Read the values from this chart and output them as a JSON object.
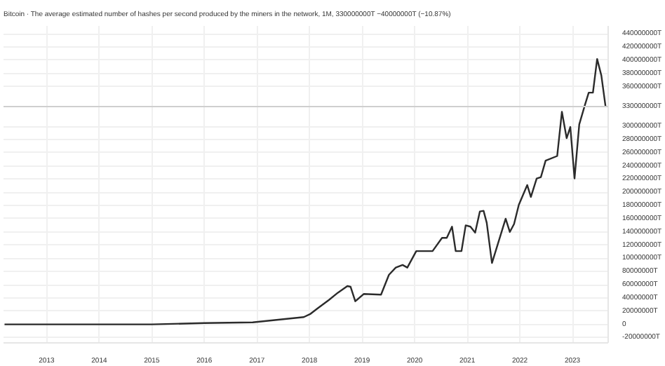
{
  "chart_data": {
    "type": "line",
    "title": "Bitcoin · The average estimated number of hashes per second produced by the miners in the network, 1M, 330000000T −40000000T (−10.87%)",
    "x": [
      2012.2,
      2014.0,
      2015.0,
      2016.0,
      2016.92,
      2017.89,
      2018.02,
      2018.15,
      2018.37,
      2018.54,
      2018.72,
      2018.78,
      2018.87,
      2019.03,
      2019.36,
      2019.51,
      2019.64,
      2019.77,
      2019.86,
      2020.03,
      2020.34,
      2020.52,
      2020.61,
      2020.71,
      2020.78,
      2020.89,
      2020.97,
      2021.06,
      2021.15,
      2021.24,
      2021.31,
      2021.37,
      2021.47,
      2021.73,
      2021.81,
      2021.89,
      2021.98,
      2022.14,
      2022.21,
      2022.32,
      2022.4,
      2022.49,
      2022.71,
      2022.8,
      2022.89,
      2022.96,
      2023.04,
      2023.13,
      2023.24,
      2023.31,
      2023.39,
      2023.47,
      2023.55,
      2023.63
    ],
    "series": [
      {
        "color": "#2b2b2b",
        "values": [
          0,
          0,
          0,
          2000000,
          3000000,
          11000000,
          16000000,
          24000000,
          37000000,
          48000000,
          58000000,
          57000000,
          35000000,
          46000000,
          45000000,
          75000000,
          86000000,
          90000000,
          86000000,
          111000000,
          111000000,
          131000000,
          131000000,
          148000000,
          111000000,
          111000000,
          150000000,
          148000000,
          139000000,
          171000000,
          172000000,
          154000000,
          93000000,
          160000000,
          140000000,
          152000000,
          181000000,
          211000000,
          193000000,
          221000000,
          223000000,
          248000000,
          255000000,
          322000000,
          282000000,
          299000000,
          221000000,
          303000000,
          333000000,
          351000000,
          351000000,
          402000000,
          377000000,
          330000000
        ]
      }
    ],
    "xlim": [
      2012.18,
      2023.68
    ],
    "xticks": [
      2013,
      2014,
      2015,
      2016,
      2017,
      2018,
      2019,
      2020,
      2021,
      2022,
      2023
    ],
    "ylim": [
      -28000000,
      452000000
    ],
    "yticks": [
      {
        "value": -20000000,
        "label": "-20000000T"
      },
      {
        "value": 0,
        "label": "0"
      },
      {
        "value": 20000000,
        "label": "20000000T"
      },
      {
        "value": 40000000,
        "label": "40000000T"
      },
      {
        "value": 60000000,
        "label": "60000000T"
      },
      {
        "value": 80000000,
        "label": "80000000T"
      },
      {
        "value": 100000000,
        "label": "100000000T"
      },
      {
        "value": 120000000,
        "label": "120000000T"
      },
      {
        "value": 140000000,
        "label": "140000000T"
      },
      {
        "value": 160000000,
        "label": "160000000T"
      },
      {
        "value": 180000000,
        "label": "180000000T"
      },
      {
        "value": 200000000,
        "label": "200000000T"
      },
      {
        "value": 220000000,
        "label": "220000000T"
      },
      {
        "value": 240000000,
        "label": "240000000T"
      },
      {
        "value": 260000000,
        "label": "260000000T"
      },
      {
        "value": 280000000,
        "label": "280000000T"
      },
      {
        "value": 300000000,
        "label": "300000000T"
      },
      {
        "value": 360000000,
        "label": "360000000T"
      },
      {
        "value": 380000000,
        "label": "380000000T"
      },
      {
        "value": 400000000,
        "label": "400000000T"
      },
      {
        "value": 420000000,
        "label": "420000000T"
      },
      {
        "value": 440000000,
        "label": "440000000T"
      }
    ],
    "ref_lines": [
      {
        "axis": "y",
        "value": 330000000,
        "label": "330000000T",
        "color": "#cfcfcf"
      }
    ],
    "grid": true,
    "line_style": "solid",
    "marker": "none"
  }
}
